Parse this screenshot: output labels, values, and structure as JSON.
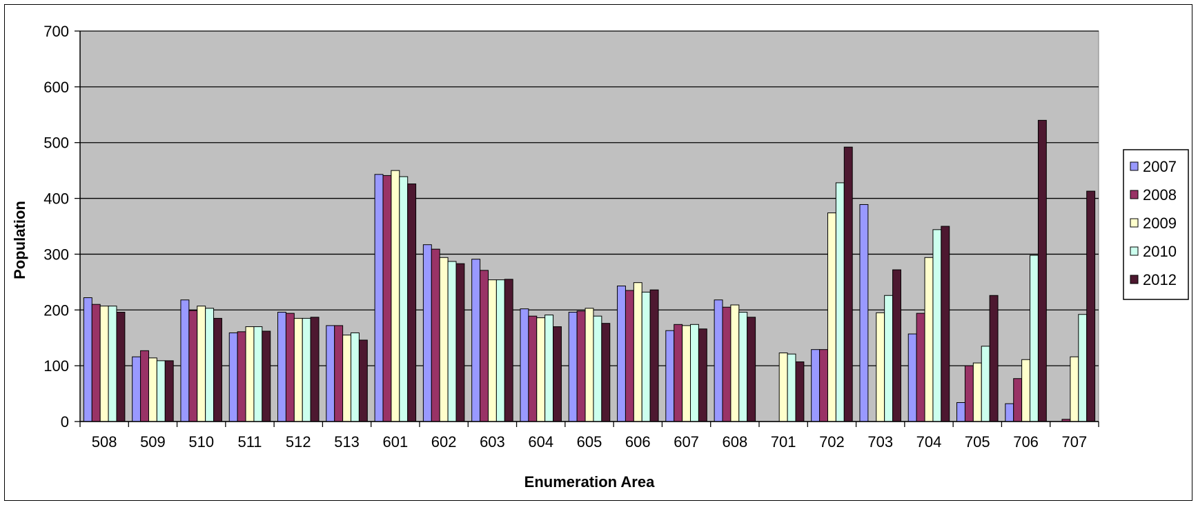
{
  "chart_data": {
    "type": "bar",
    "title": "",
    "xlabel": "Enumeration Area",
    "ylabel": "Population",
    "ylim": [
      0,
      700
    ],
    "yticks": [
      0,
      100,
      200,
      300,
      400,
      500,
      600,
      700
    ],
    "grid": true,
    "legend_position": "right",
    "plot_background": "#c0c0c0",
    "categories": [
      "508",
      "509",
      "510",
      "511",
      "512",
      "513",
      "601",
      "602",
      "603",
      "604",
      "605",
      "606",
      "607",
      "608",
      "701",
      "702",
      "703",
      "704",
      "705",
      "706",
      "707"
    ],
    "series": [
      {
        "name": "2007",
        "color": "#9999ff",
        "values": [
          222,
          116,
          218,
          159,
          196,
          172,
          443,
          317,
          291,
          202,
          196,
          243,
          163,
          218,
          0,
          129,
          389,
          157,
          34,
          32,
          0
        ]
      },
      {
        "name": "2008",
        "color": "#993366",
        "values": [
          210,
          127,
          199,
          161,
          194,
          172,
          441,
          309,
          271,
          189,
          198,
          235,
          174,
          205,
          0,
          129,
          0,
          194,
          100,
          77,
          4
        ]
      },
      {
        "name": "2009",
        "color": "#ffffcc",
        "values": [
          207,
          114,
          207,
          170,
          185,
          155,
          450,
          294,
          254,
          186,
          203,
          249,
          172,
          209,
          123,
          374,
          195,
          294,
          105,
          111,
          116
        ]
      },
      {
        "name": "2010",
        "color": "#ccffee",
        "values": [
          207,
          109,
          203,
          170,
          185,
          159,
          439,
          287,
          254,
          191,
          189,
          232,
          174,
          196,
          121,
          428,
          226,
          344,
          135,
          298,
          192
        ]
      },
      {
        "name": "2012",
        "color": "#4d1830",
        "values": [
          196,
          109,
          185,
          162,
          187,
          146,
          426,
          283,
          255,
          170,
          176,
          236,
          166,
          187,
          107,
          492,
          272,
          350,
          226,
          540,
          413
        ]
      }
    ]
  }
}
